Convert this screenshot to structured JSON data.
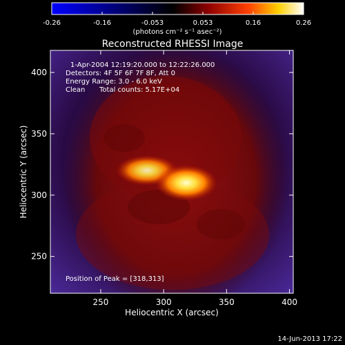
{
  "colorbar": {
    "colors": [
      "#0000ff",
      "#000000",
      "#8b0000",
      "#ff4000",
      "#ffd000",
      "#ffffff"
    ],
    "tick_labels": [
      "-0.26",
      "-0.16",
      "-0.053",
      "0.053",
      "0.16",
      "0.26"
    ],
    "unit_label": "(photons cm⁻² s⁻¹ asec⁻²)"
  },
  "chart_data": {
    "type": "heatmap",
    "title": "Reconstructed RHESSI Image",
    "xlabel": "Heliocentric X (arcsec)",
    "ylabel": "Heliocentric Y (arcsec)",
    "xlim": [
      210,
      403
    ],
    "ylim": [
      220,
      418
    ],
    "xticks": [
      250,
      300,
      350,
      400
    ],
    "yticks": [
      250,
      300,
      350,
      400
    ],
    "value_range": [
      -0.26,
      0.26
    ],
    "peak": {
      "x": 318,
      "y": 313,
      "value": 0.26
    },
    "secondary_source": {
      "x": 270,
      "y": 318,
      "value": 0.2
    },
    "background_level": -0.02,
    "emission_level": 0.08
  },
  "annotations": {
    "time_range": "1-Apr-2004 12:19:20.000 to 12:22:26.000",
    "detectors": "Detectors: 4F 5F 6F 7F 8F, Att 0",
    "energy": "Energy Range: 3.0 - 6.0 keV",
    "clean": "Clean",
    "counts": "Total counts: 5.17E+04",
    "peak_position": "Position of Peak = [318,313]"
  },
  "footer_date": "14-Jun-2013 17:22"
}
